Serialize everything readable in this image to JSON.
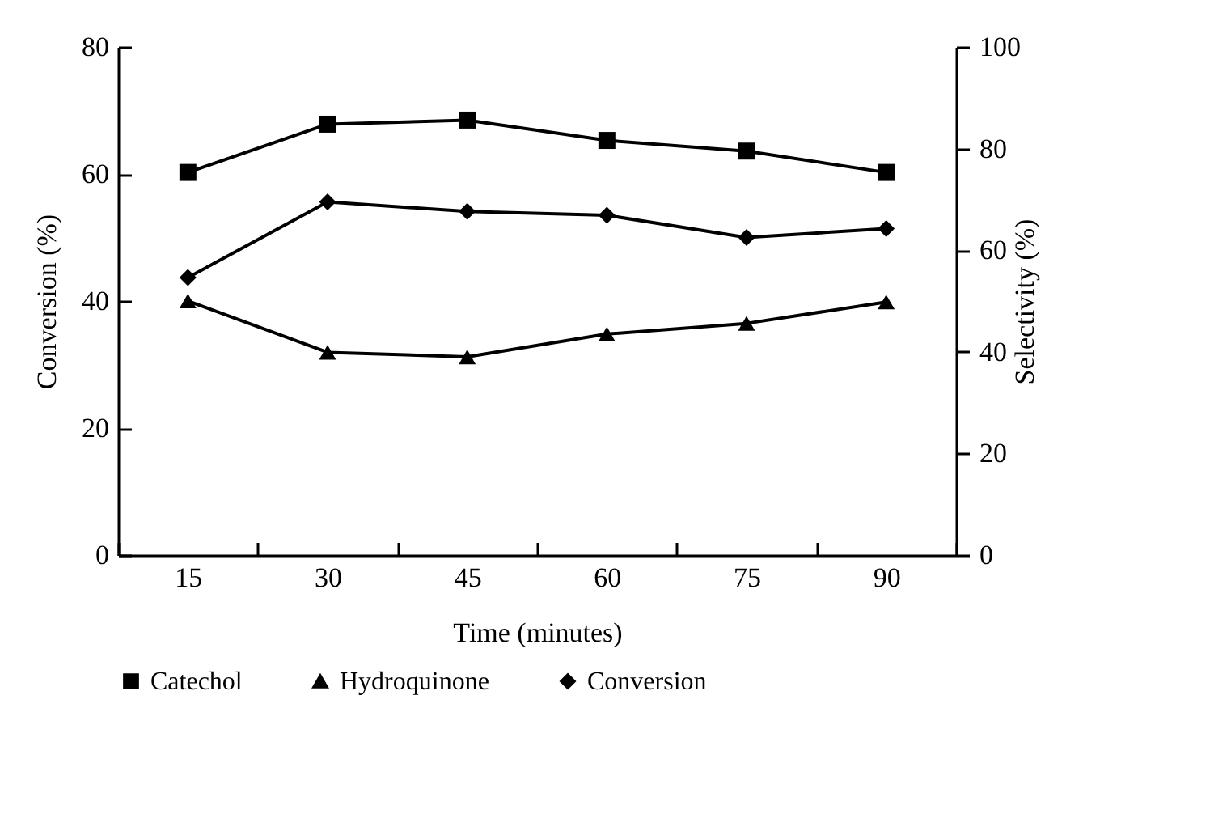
{
  "chart_data": {
    "type": "line",
    "xlabel": "Time (minutes)",
    "ylabel": "Conversion (%)",
    "y2label": "Selectivity (%)",
    "categories": [
      "15",
      "30",
      "45",
      "60",
      "75",
      "90"
    ],
    "ylim": [
      0,
      80
    ],
    "yticks": [
      0,
      20,
      40,
      60,
      80
    ],
    "y2lim": [
      0,
      100
    ],
    "y2ticks": [
      0,
      20,
      40,
      60,
      80,
      100
    ],
    "grid": false,
    "legend": "bottom",
    "line_style": "solid",
    "series": [
      {
        "name": "Catechol",
        "color": "#000000",
        "marker": "square",
        "axis": "y2",
        "values": [
          75.3,
          84.8,
          85.6,
          81.6,
          79.5,
          75.3
        ]
      },
      {
        "name": "Hydroquinone",
        "color": "#000000",
        "marker": "triangle",
        "axis": "y2",
        "values": [
          50,
          39.9,
          39,
          43.5,
          45.6,
          49.8
        ]
      },
      {
        "name": "Conversion",
        "color": "#000000",
        "marker": "diamond",
        "values": [
          43.7,
          55.6,
          54.1,
          53.5,
          50,
          51.4
        ]
      }
    ]
  }
}
